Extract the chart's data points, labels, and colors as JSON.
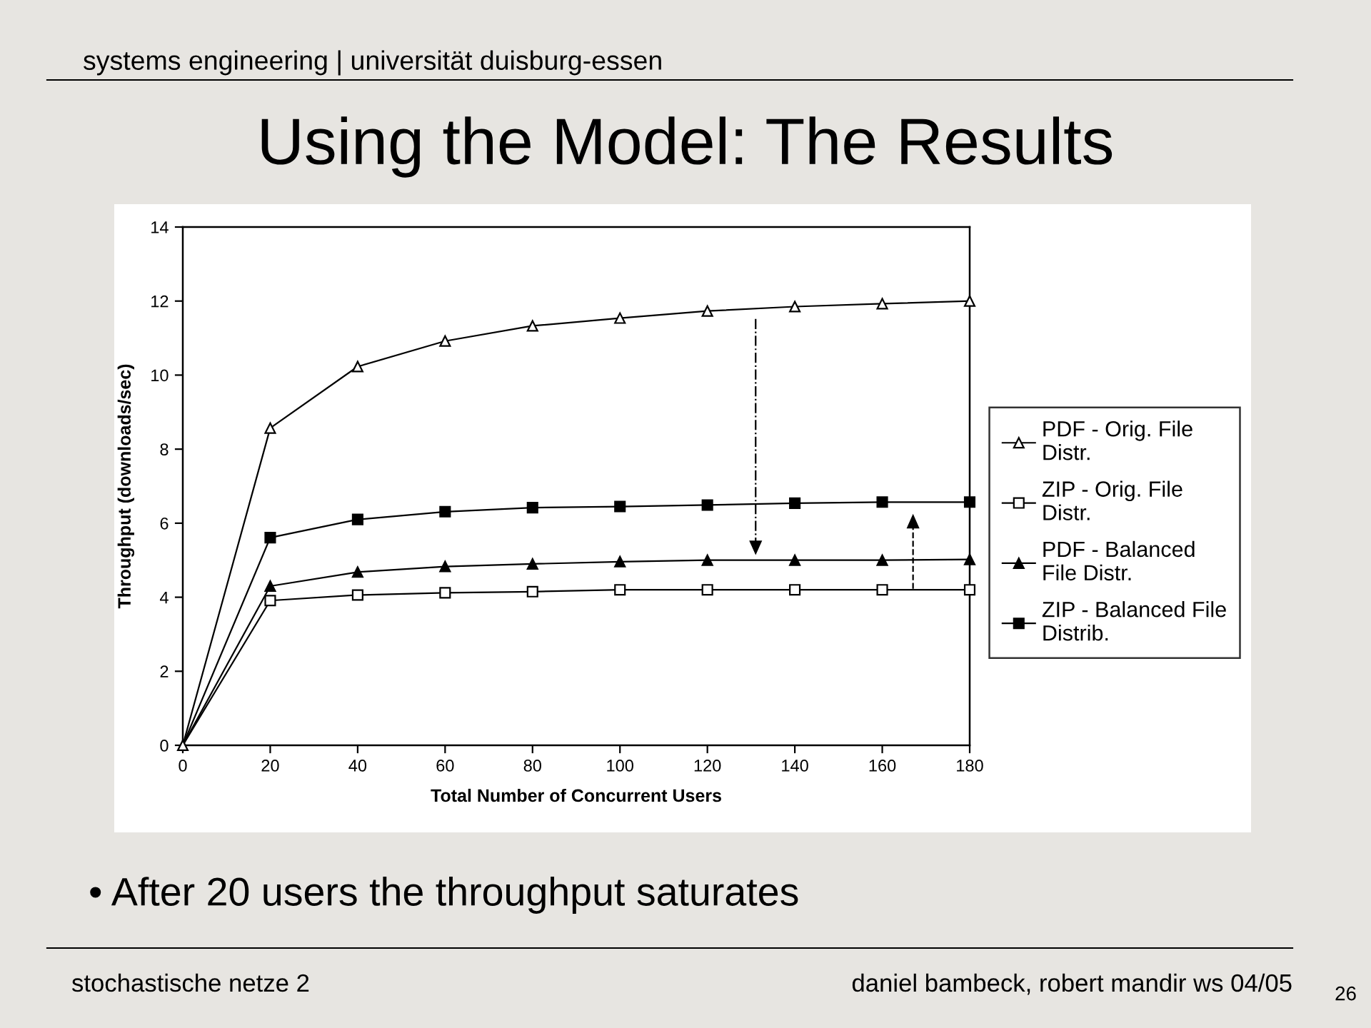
{
  "chart_data": {
    "type": "line",
    "title": "Using the Model: The Results",
    "xlabel": "Total Number of Concurrent Users",
    "ylabel": "Throughput (downloads/sec)",
    "x": [
      0,
      20,
      40,
      60,
      80,
      100,
      120,
      140,
      160,
      180
    ],
    "series": [
      {
        "name": "PDF - Orig. File Distr.",
        "color": "#000000",
        "marker": "triangle",
        "values": [
          0,
          8.57,
          10.23,
          10.92,
          11.33,
          11.54,
          11.73,
          11.85,
          11.93,
          12.0
        ]
      },
      {
        "name": "ZIP - Orig. File Distr.",
        "color": "#000000",
        "marker": "square",
        "values": [
          0,
          3.91,
          4.06,
          4.12,
          4.15,
          4.2,
          4.2,
          4.2,
          4.2,
          4.2
        ]
      },
      {
        "name": "PDF - Balanced File Distr.",
        "color": "#000000",
        "marker": "triangle",
        "values": [
          0,
          4.3,
          4.68,
          4.83,
          4.9,
          4.96,
          5.0,
          5.0,
          5.0,
          5.02
        ]
      },
      {
        "name": "ZIP - Balanced File Distrib.",
        "color": "#000000",
        "marker": "square",
        "values": [
          0,
          5.61,
          6.1,
          6.31,
          6.42,
          6.45,
          6.49,
          6.54,
          6.57,
          6.57
        ]
      }
    ],
    "xlim": [
      0,
      180
    ],
    "xticks": [
      0,
      20,
      40,
      60,
      80,
      100,
      120,
      140,
      160,
      180
    ],
    "ylim": [
      0,
      14
    ],
    "yticks": [
      0,
      2,
      4,
      6,
      8,
      10,
      12,
      14
    ],
    "legend": "right",
    "line_style": "solid",
    "annotations": [
      "systems engineering | universität duisburg-essen",
      "• After 20 users the throughput saturates",
      "stochastische netze 2",
      "daniel bambeck, robert mandir ws 04/05",
      "26"
    ]
  }
}
